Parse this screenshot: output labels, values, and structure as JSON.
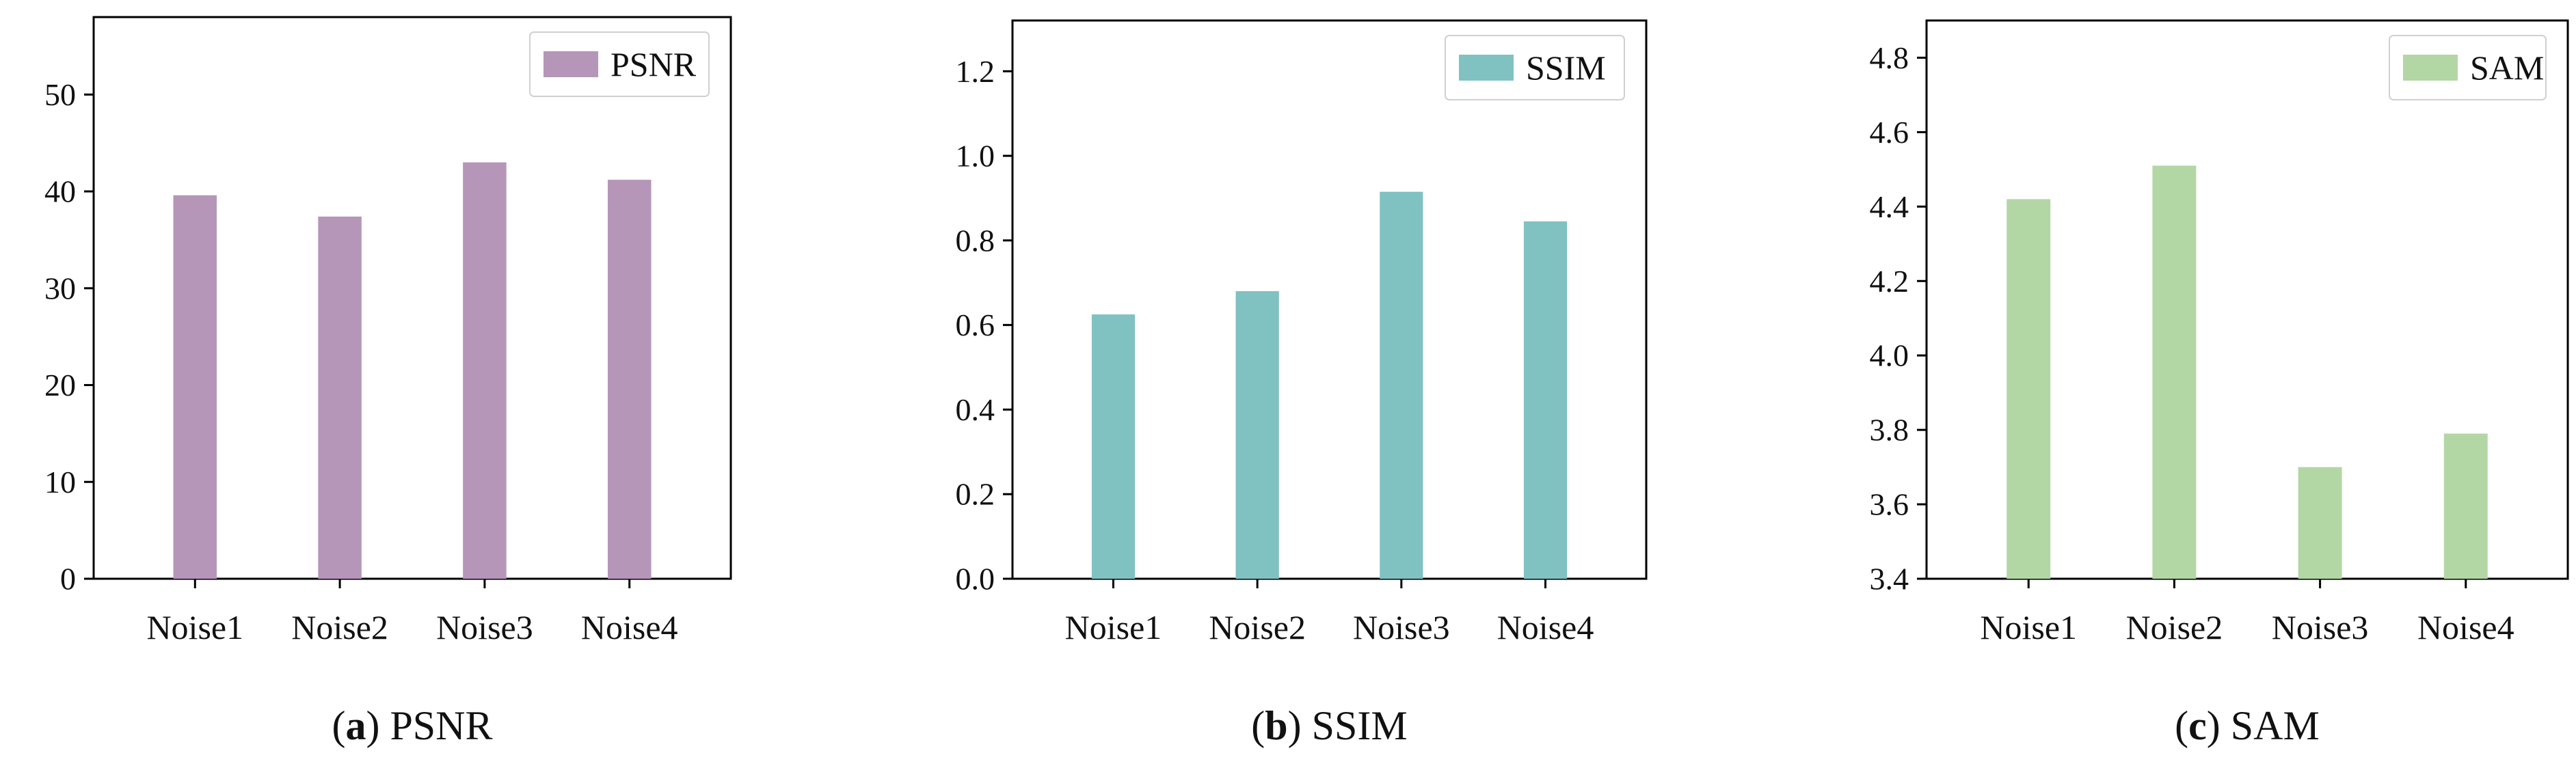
{
  "chart_data": [
    {
      "type": "bar",
      "title": "",
      "xlabel": "",
      "ylabel": "",
      "categories": [
        "Noise1",
        "Noise2",
        "Noise3",
        "Noise4"
      ],
      "series": [
        {
          "name": "PSNR",
          "values": [
            39.6,
            37.4,
            43.0,
            41.2
          ]
        }
      ],
      "ylim": [
        0,
        58
      ],
      "yticks": [
        0,
        10,
        20,
        30,
        40,
        50
      ],
      "ytick_labels": [
        "0",
        "10",
        "20",
        "30",
        "40",
        "50"
      ],
      "color": "#b596b8",
      "legend": "top-right",
      "caption": {
        "letter": "a",
        "text": "PSNR"
      }
    },
    {
      "type": "bar",
      "title": "",
      "xlabel": "",
      "ylabel": "",
      "categories": [
        "Noise1",
        "Noise2",
        "Noise3",
        "Noise4"
      ],
      "series": [
        {
          "name": "SSIM",
          "values": [
            0.625,
            0.68,
            0.915,
            0.845
          ]
        }
      ],
      "ylim": [
        0,
        1.32
      ],
      "yticks": [
        0.0,
        0.2,
        0.4,
        0.6,
        0.8,
        1.0,
        1.2
      ],
      "ytick_labels": [
        "0.0",
        "0.2",
        "0.4",
        "0.6",
        "0.8",
        "1.0",
        "1.2"
      ],
      "color": "#80c1c1",
      "legend": "top-right",
      "caption": {
        "letter": "b",
        "text": "SSIM"
      }
    },
    {
      "type": "bar",
      "title": "",
      "xlabel": "",
      "ylabel": "",
      "categories": [
        "Noise1",
        "Noise2",
        "Noise3",
        "Noise4"
      ],
      "series": [
        {
          "name": "SAM",
          "values": [
            4.42,
            4.51,
            3.7,
            3.79
          ]
        }
      ],
      "ylim": [
        3.4,
        4.9
      ],
      "yticks": [
        3.4,
        3.6,
        3.8,
        4.0,
        4.2,
        4.4,
        4.6,
        4.8
      ],
      "ytick_labels": [
        "3.4",
        "3.6",
        "3.8",
        "4.0",
        "4.2",
        "4.4",
        "4.6",
        "4.8"
      ],
      "color": "#b3d6a5",
      "legend": "top-right",
      "caption": {
        "letter": "c",
        "text": "SAM"
      }
    }
  ]
}
